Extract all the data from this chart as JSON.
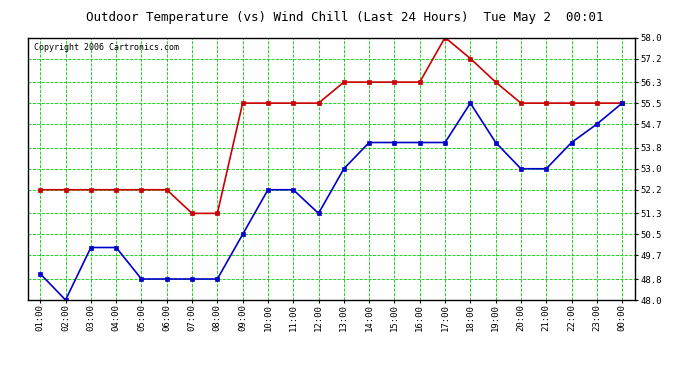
{
  "title": "Outdoor Temperature (vs) Wind Chill (Last 24 Hours)  Tue May 2  00:01",
  "copyright": "Copyright 2006 Cartronics.com",
  "x_labels": [
    "01:00",
    "02:00",
    "03:00",
    "04:00",
    "05:00",
    "06:00",
    "07:00",
    "08:00",
    "09:00",
    "10:00",
    "11:00",
    "12:00",
    "13:00",
    "14:00",
    "15:00",
    "16:00",
    "17:00",
    "18:00",
    "19:00",
    "20:00",
    "21:00",
    "22:00",
    "23:00",
    "00:00"
  ],
  "red_data": [
    52.2,
    52.2,
    52.2,
    52.2,
    52.2,
    52.2,
    51.3,
    51.3,
    55.5,
    55.5,
    55.5,
    55.5,
    56.3,
    56.3,
    56.3,
    56.3,
    58.0,
    57.2,
    56.3,
    55.5,
    55.5,
    55.5,
    55.5,
    55.5
  ],
  "blue_data": [
    49.0,
    48.0,
    50.0,
    50.0,
    48.8,
    48.8,
    48.8,
    48.8,
    50.5,
    52.2,
    52.2,
    51.3,
    53.0,
    54.0,
    54.0,
    54.0,
    54.0,
    55.5,
    54.0,
    53.0,
    53.0,
    54.0,
    54.7,
    55.5
  ],
  "ylim": [
    48.0,
    58.0
  ],
  "yticks": [
    48.0,
    48.8,
    49.7,
    50.5,
    51.3,
    52.2,
    53.0,
    53.8,
    54.7,
    55.5,
    56.3,
    57.2,
    58.0
  ],
  "bg_color": "#ffffff",
  "plot_bg_color": "#ffffff",
  "grid_color": "#00cc00",
  "red_color": "#cc0000",
  "blue_color": "#0000cc",
  "title_color": "#000000",
  "border_color": "#000000",
  "title_fontsize": 9,
  "tick_fontsize": 6.5,
  "copyright_fontsize": 6
}
